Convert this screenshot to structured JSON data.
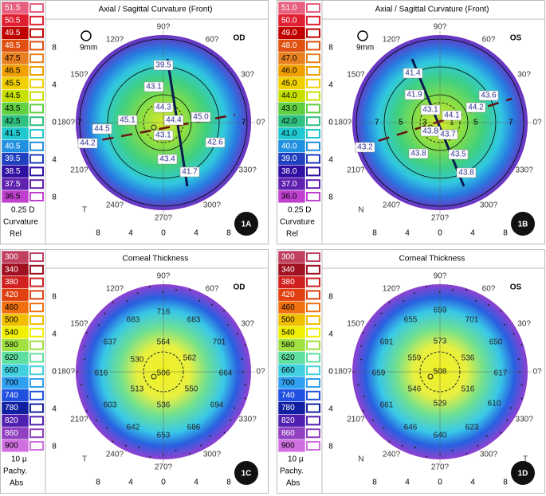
{
  "panels": [
    {
      "title": "Axial / Sagittal Curvature (Front)",
      "eye": "OD",
      "badge": "1A",
      "zoom": "9mm",
      "scale": {
        "values": [
          "51.5",
          "50.5",
          "49.5",
          "48.5",
          "47.5",
          "46.5",
          "45.5",
          "44.5",
          "43.5",
          "42.5",
          "41.5",
          "40.5",
          "39.5",
          "38.5",
          "37.5",
          "36.5"
        ],
        "step": "0.25 D",
        "kind": "Curvature",
        "mode": "Rel"
      },
      "x_ticks": [
        "8",
        "4",
        "0",
        "4",
        "8"
      ],
      "y_ticks": [
        "8",
        "4",
        "0",
        "4",
        "8"
      ],
      "angles": [
        "90?",
        "60?",
        "30?",
        "0?",
        "330?",
        "300?",
        "270?",
        "240?",
        "210?",
        "180?",
        "150?",
        "120?"
      ],
      "sides": [
        "T"
      ],
      "ring_labels": [
        "7",
        "7"
      ],
      "readings": [
        "39.5",
        "43.1",
        "44.3",
        "45.1",
        "44.4",
        "45.0",
        "44.5",
        "43.1",
        "42.6",
        "44.2",
        "43.4",
        "41.7"
      ]
    },
    {
      "title": "Axial / Sagittal Curvature (Front)",
      "eye": "OS",
      "badge": "1B",
      "zoom": "9mm",
      "scale": {
        "values": [
          "51.0",
          "50.0",
          "49.0",
          "48.0",
          "47.0",
          "46.0",
          "45.0",
          "44.0",
          "43.0",
          "42.0",
          "41.0",
          "40.0",
          "39.0",
          "38.0",
          "37.0",
          "36.0"
        ],
        "step": "0.25 D",
        "kind": "Curvature",
        "mode": "Rel"
      },
      "x_ticks": [
        "8",
        "4",
        "0",
        "4",
        "8"
      ],
      "y_ticks": [
        "8",
        "4",
        "0",
        "4",
        "8"
      ],
      "angles": [
        "90?",
        "60?",
        "30?",
        "0?",
        "330?",
        "300?",
        "270?",
        "240?",
        "210?",
        "180?",
        "150?",
        "120?"
      ],
      "sides": [
        "N"
      ],
      "ring_labels": [
        "7",
        "5",
        "3",
        "1",
        "5",
        "7"
      ],
      "readings": [
        "41.4",
        "41.9",
        "43.1",
        "44.1",
        "44.2",
        "43.6",
        "43.8",
        "43.7",
        "43.2",
        "43.8",
        "43.5",
        "43.8"
      ]
    },
    {
      "title": "Corneal Thickness",
      "eye": "OD",
      "badge": "1C",
      "scale": {
        "values": [
          "300",
          "340",
          "380",
          "420",
          "460",
          "500",
          "540",
          "580",
          "620",
          "660",
          "700",
          "740",
          "780",
          "820",
          "860",
          "900"
        ],
        "step": "10 µ",
        "kind": "Pachy.",
        "mode": "Abs"
      },
      "x_ticks": [
        "8",
        "4",
        "0",
        "4",
        "8"
      ],
      "y_ticks": [
        "8",
        "4",
        "0",
        "4",
        "8"
      ],
      "angles": [
        "90?",
        "60?",
        "30?",
        "0?",
        "330?",
        "300?",
        "270?",
        "240?",
        "210?",
        "180?",
        "150?",
        "120?"
      ],
      "sides": [
        "T"
      ],
      "ring_labels": [],
      "readings": [
        "716",
        "683",
        "683",
        "637",
        "564",
        "701",
        "530",
        "562",
        "616",
        "506",
        "664",
        "513",
        "550",
        "603",
        "536",
        "694",
        "642",
        "686",
        "653"
      ]
    },
    {
      "title": "Corneal Thickness",
      "eye": "OS",
      "badge": "1D",
      "scale": {
        "values": [
          "300",
          "340",
          "380",
          "420",
          "460",
          "500",
          "540",
          "580",
          "620",
          "660",
          "700",
          "740",
          "780",
          "820",
          "860",
          "900"
        ],
        "step": "10 µ",
        "kind": "Pachy.",
        "mode": "Abs"
      },
      "x_ticks": [
        "8",
        "4",
        "0",
        "4",
        "8"
      ],
      "y_ticks": [
        "8",
        "4",
        "0",
        "4",
        "8"
      ],
      "angles": [
        "90?",
        "60?",
        "30?",
        "0?",
        "330?",
        "300?",
        "270?",
        "240?",
        "210?",
        "180?",
        "150?",
        "120?"
      ],
      "sides": [
        "N",
        "T"
      ],
      "ring_labels": [],
      "readings": [
        "655",
        "659",
        "701",
        "691",
        "573",
        "650",
        "559",
        "536",
        "659",
        "508",
        "617",
        "546",
        "516",
        "661",
        "529",
        "610",
        "646",
        "623",
        "640"
      ]
    }
  ]
}
